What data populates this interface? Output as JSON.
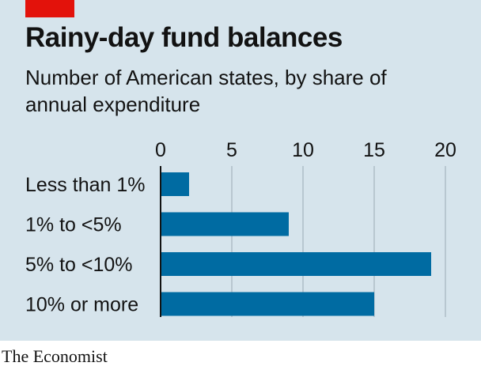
{
  "header": {
    "title": "Rainy-day fund balances",
    "subtitle": "Number of American states, by share of annual expenditure"
  },
  "footer": {
    "source": "The Economist"
  },
  "colors": {
    "bar": "#006ba2",
    "panel": "#d6e4ec",
    "accent": "#e3120b",
    "grid": "#9aaab5"
  },
  "chart_data": {
    "type": "bar",
    "orientation": "horizontal",
    "categories": [
      "Less than 1%",
      "1% to <5%",
      "5% to <10%",
      "10% or more"
    ],
    "values": [
      2,
      9,
      19,
      15
    ],
    "xlim": [
      0,
      20
    ],
    "xticks": [
      0,
      5,
      10,
      15,
      20
    ],
    "grid": true,
    "xaxis_position": "top"
  }
}
